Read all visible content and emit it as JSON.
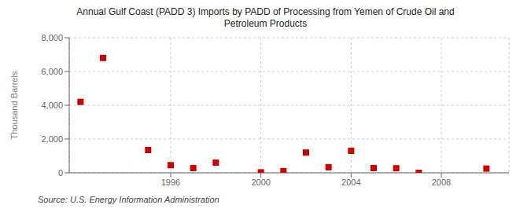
{
  "chart_data": {
    "type": "scatter",
    "title": "Annual Gulf Coast (PADD 3) Imports by PADD of Processing from Yemen of Crude Oil and\nPetroleum Products",
    "y_label": "Thousand Barrels",
    "source": "Source: U.S. Energy Information Administration",
    "x": [
      1992,
      1993,
      1995,
      1996,
      1997,
      1998,
      2000,
      2001,
      2002,
      2003,
      2004,
      2005,
      2006,
      2007,
      2010
    ],
    "values": [
      4200,
      6800,
      1350,
      450,
      280,
      600,
      30,
      100,
      1200,
      330,
      1300,
      280,
      270,
      0,
      250
    ],
    "color": "#cc0000",
    "marker": "square",
    "xlim": [
      1991.5,
      2011
    ],
    "ylim": [
      0,
      8000
    ],
    "xticks": [
      1996,
      2000,
      2004,
      2008
    ],
    "yticks": [
      0,
      {
        "value": 2000,
        "label": "2,000"
      },
      {
        "value": 4000,
        "label": "4,000"
      },
      {
        "value": 6000,
        "label": "6,000"
      },
      {
        "value": 8000,
        "label": "8,000"
      }
    ],
    "grid": true
  }
}
